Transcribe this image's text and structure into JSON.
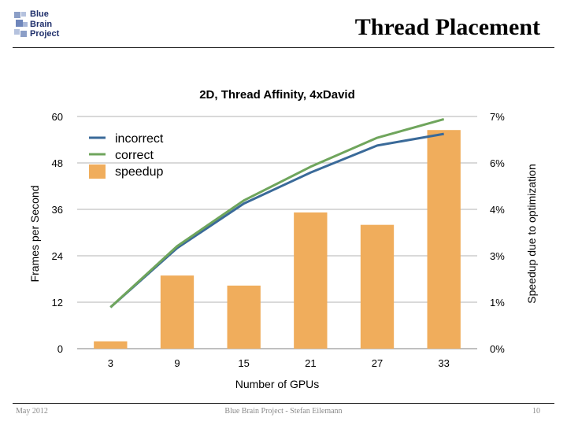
{
  "slide": {
    "title": "Thread Placement",
    "logo_lines": [
      "Blue",
      "Brain",
      "Project"
    ],
    "footer_left": "May 2012",
    "footer_center": "Blue Brain Project - Stefan Eilemann",
    "footer_right": "10"
  },
  "colors": {
    "incorrect": "#3a6a99",
    "correct": "#6fa55c",
    "speedup": "#f0ad5c",
    "grid": "#9a9a9a",
    "logo_square": "#8c9fc7"
  },
  "chart_data": {
    "type": "bar",
    "title": "2D, Thread Affinity, 4xDavid",
    "xlabel": "Number of GPUs",
    "ylabel": "Frames per Second",
    "y2label": "Speedup due to optimization",
    "categories": [
      "3",
      "9",
      "15",
      "21",
      "27",
      "33"
    ],
    "yticks": [
      "0",
      "12",
      "24",
      "36",
      "48",
      "60"
    ],
    "y2ticks": [
      "0%",
      "1%",
      "3%",
      "4%",
      "6%",
      "7%"
    ],
    "ylim": [
      0,
      60
    ],
    "y2lim": [
      0,
      7
    ],
    "grid": true,
    "legend": "top-left",
    "series": [
      {
        "name": "incorrect",
        "type": "line",
        "axis": "left",
        "values": [
          10.7,
          26.0,
          37.5,
          45.5,
          52.5,
          55.5
        ]
      },
      {
        "name": "correct",
        "type": "line",
        "axis": "left",
        "values": [
          10.7,
          26.5,
          38.3,
          47.0,
          54.5,
          59.3
        ]
      },
      {
        "name": "speedup",
        "type": "bar",
        "axis": "left",
        "values": [
          1.9,
          18.9,
          16.3,
          35.2,
          32.0,
          56.5
        ]
      }
    ]
  }
}
